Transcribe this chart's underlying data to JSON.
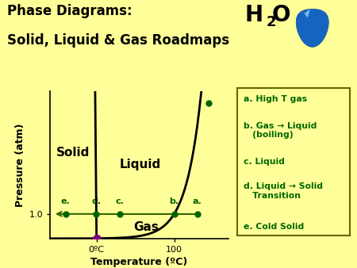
{
  "bg_color": "#FFFF99",
  "title_line1": "Phase Diagrams:",
  "title_line2": "Solid, Liquid & Gas Roadmaps",
  "xlabel": "Temperature (ºC)",
  "ylabel": "Pressure (atm)",
  "xtick_0": "0ºC",
  "xtick_100": "100",
  "ytick_1": "1.0",
  "dot_color": "#006600",
  "triple_point_color": "#800080",
  "curve_color": "#000000",
  "h1atm_line_color": "#336600",
  "guide_line_color": "#999933",
  "legend_text_color": "#006600",
  "legend_border_color": "#666600",
  "phase_label_color": "#000000",
  "legend_items": [
    "a. High T gas",
    "b. Gas → Liquid\n   (boiling)",
    "c. Liquid",
    "d. Liquid → Solid\n   Transition",
    "e. Cold Solid"
  ],
  "x_triple": 0.0,
  "y_triple": 0.006,
  "x_0C": 0.0,
  "x_100C": 5.0,
  "y_1atm": 1.0,
  "xlim": [
    -3.0,
    8.5
  ],
  "ylim": [
    0.0,
    6.0
  ],
  "fuse_slope": -0.015,
  "vap_scale": 0.38,
  "point_e_x": -2.0,
  "point_c_x": 1.5,
  "point_a_x": 6.5
}
